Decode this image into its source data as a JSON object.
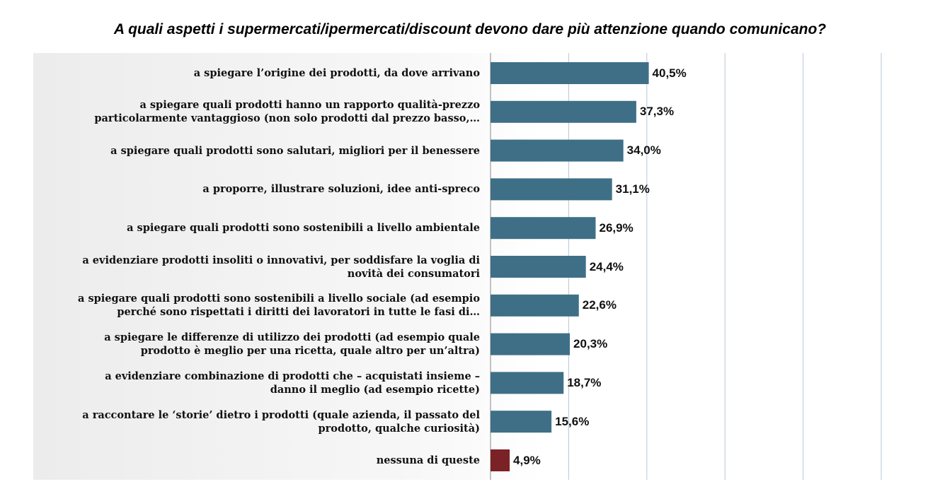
{
  "chart_data": {
    "type": "bar",
    "orientation": "horizontal",
    "title": "A quali aspetti i supermercati/ipermercati/discount devono dare più attenzione quando comunicano?",
    "xlabel": "",
    "ylabel": "",
    "xlim": [
      0,
      100
    ],
    "grid": true,
    "legend": "none",
    "categories": [
      [
        "a spiegare l’origine dei prodotti, da dove arrivano"
      ],
      [
        "a spiegare quali prodotti hanno un rapporto qualità-prezzo",
        "particolarmente vantaggioso (non solo prodotti dal prezzo basso,…"
      ],
      [
        "a spiegare quali prodotti sono salutari, migliori per il benessere"
      ],
      [
        "a proporre, illustrare soluzioni, idee anti-spreco"
      ],
      [
        "a spiegare quali prodotti sono sostenibili a livello ambientale"
      ],
      [
        "a evidenziare prodotti insoliti o innovativi, per soddisfare la voglia di",
        "novità dei consumatori"
      ],
      [
        "a spiegare quali prodotti sono sostenibili a livello sociale (ad esempio",
        "perché sono rispettati i diritti dei lavoratori in tutte le fasi di…"
      ],
      [
        "a spiegare le differenze di utilizzo dei prodotti (ad esempio quale",
        "prodotto è meglio per una ricetta, quale altro per un’altra)"
      ],
      [
        "a evidenziare combinazione di prodotti che – acquistati insieme –",
        "danno il meglio (ad esempio ricette)"
      ],
      [
        "a raccontare le ‘storie’ dietro i prodotti (quale azienda, il passato del",
        "prodotto, qualche curiosità)"
      ],
      [
        "nessuna di queste"
      ]
    ],
    "values": [
      40.5,
      37.3,
      34.0,
      31.1,
      26.9,
      24.4,
      22.6,
      20.3,
      18.7,
      15.6,
      4.9
    ],
    "value_labels": [
      "40,5%",
      "37,3%",
      "34,0%",
      "31,1%",
      "26,9%",
      "24,4%",
      "22,6%",
      "20,3%",
      "18,7%",
      "15,6%",
      "4,9%"
    ],
    "colors": {
      "bar": "#3e6f87",
      "highlight_bar": "#7b2226",
      "gridline": "#b8c7d6"
    },
    "highlight_index": 10
  }
}
